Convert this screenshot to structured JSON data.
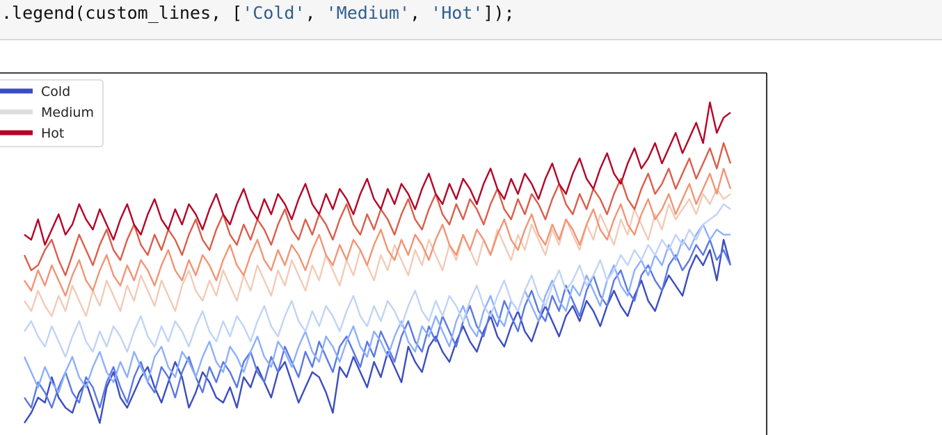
{
  "code_cell": {
    "prefix": ".legend(custom_lines, [",
    "str1": "'Cold'",
    "sep1": ", ",
    "str2": "'Medium'",
    "sep2": ", ",
    "str3": "'Hot'",
    "suffix": "]);"
  },
  "chart_data": {
    "type": "line",
    "title": "",
    "xlabel": "",
    "ylabel": "",
    "grid": false,
    "legend": {
      "placement": "upper-left",
      "entries": [
        {
          "label": "Cold",
          "color": "#3b4cc0"
        },
        {
          "label": "Medium",
          "color": "#dddddd"
        },
        {
          "label": "Hot",
          "color": "#b40426"
        }
      ]
    },
    "colormap": "coolwarm",
    "series": [
      {
        "color": "#3b4cc0",
        "values": [
          -0.1,
          0.1,
          0.4,
          0.3,
          0.8,
          0.4,
          0.2,
          0.1,
          0.5,
          0.7,
          0.3,
          -0.1,
          0.6,
          0.9,
          0.4,
          0.2,
          0.5,
          0.8,
          1.0,
          0.6,
          0.3,
          0.7,
          1.1,
          0.8,
          0.2,
          0.5,
          0.9,
          0.7,
          0.4,
          0.3,
          0.6,
          0.2,
          0.8,
          0.6,
          1.0,
          0.7,
          0.4,
          0.9,
          1.1,
          0.7,
          0.3,
          0.6,
          0.9,
          0.8,
          0.5,
          0.1,
          1.0,
          0.8,
          1.2,
          0.9,
          0.6,
          1.1,
          0.8,
          1.3,
          1.0,
          0.7,
          1.4,
          1.1,
          0.9,
          1.4,
          1.6,
          1.3,
          1.1,
          1.5,
          1.8,
          1.5,
          1.3,
          1.7,
          2.0,
          1.6,
          1.4,
          1.8,
          2.1,
          1.7,
          1.5,
          1.9,
          2.2,
          1.9,
          1.6,
          2.0,
          2.2,
          1.9,
          2.3,
          2.1,
          1.8,
          2.2,
          2.5,
          2.2,
          2.0,
          2.4,
          2.7,
          2.3,
          2.1,
          2.5,
          2.8,
          2.6,
          2.4,
          2.9,
          3.2,
          3.0,
          3.3,
          2.7,
          3.5,
          3.0
        ]
      },
      {
        "color": "#5a78e4",
        "values": [
          0.4,
          0.2,
          0.7,
          0.5,
          0.2,
          0.6,
          0.9,
          0.5,
          0.3,
          0.8,
          0.6,
          0.2,
          0.7,
          1.0,
          0.6,
          0.3,
          0.8,
          1.1,
          0.7,
          0.5,
          1.0,
          0.8,
          0.4,
          0.9,
          1.2,
          0.8,
          0.5,
          1.0,
          0.7,
          1.1,
          0.9,
          0.6,
          1.1,
          1.3,
          0.9,
          0.7,
          1.2,
          0.9,
          1.4,
          1.1,
          0.8,
          1.3,
          1.0,
          1.5,
          1.2,
          0.9,
          1.4,
          1.6,
          1.3,
          1.0,
          1.5,
          1.2,
          1.7,
          1.4,
          1.1,
          1.6,
          1.9,
          1.5,
          1.3,
          1.8,
          1.5,
          2.0,
          1.7,
          1.4,
          1.9,
          2.2,
          1.8,
          1.6,
          2.1,
          1.8,
          2.3,
          2.0,
          1.7,
          2.2,
          2.5,
          2.1,
          1.9,
          2.4,
          2.1,
          2.6,
          2.3,
          2.0,
          2.5,
          2.8,
          2.4,
          2.2,
          2.7,
          2.9,
          2.5,
          2.3,
          2.8,
          3.0,
          2.7,
          2.5,
          3.0,
          3.2,
          2.9,
          3.1,
          3.4,
          3.2,
          3.5,
          3.1,
          3.3,
          3.0
        ]
      },
      {
        "color": "#8caffe",
        "values": [
          1.2,
          0.9,
          0.6,
          1.0,
          0.7,
          0.5,
          0.9,
          1.2,
          0.8,
          0.6,
          1.0,
          1.3,
          0.9,
          0.7,
          1.1,
          0.8,
          1.3,
          1.0,
          0.7,
          1.2,
          1.4,
          1.0,
          0.8,
          1.3,
          1.1,
          0.8,
          1.2,
          1.5,
          1.1,
          0.9,
          1.4,
          1.2,
          0.9,
          1.3,
          1.6,
          1.2,
          1.0,
          1.5,
          1.3,
          1.0,
          1.4,
          1.7,
          1.3,
          1.1,
          1.6,
          1.4,
          1.1,
          1.5,
          1.8,
          1.4,
          1.2,
          1.7,
          1.5,
          1.2,
          1.6,
          1.9,
          1.5,
          1.3,
          1.8,
          1.6,
          2.0,
          1.7,
          1.4,
          1.9,
          2.2,
          1.8,
          1.6,
          2.1,
          2.4,
          2.0,
          1.8,
          2.3,
          2.1,
          2.5,
          2.2,
          1.9,
          2.4,
          2.7,
          2.3,
          2.1,
          2.6,
          2.4,
          2.8,
          2.5,
          2.2,
          2.7,
          3.0,
          2.6,
          2.4,
          2.9,
          3.1,
          2.8,
          3.2,
          3.0,
          3.4,
          3.1,
          3.5,
          3.3,
          3.6,
          3.8,
          3.5,
          3.7,
          3.6,
          3.6
        ]
      },
      {
        "color": "#c0d4f5",
        "values": [
          1.7,
          1.9,
          1.6,
          1.4,
          1.8,
          1.5,
          1.2,
          1.6,
          1.9,
          1.5,
          1.3,
          1.7,
          1.4,
          1.8,
          1.6,
          1.3,
          1.7,
          2.0,
          1.6,
          1.4,
          1.8,
          1.5,
          1.9,
          1.7,
          1.4,
          1.8,
          2.1,
          1.7,
          1.5,
          1.9,
          1.6,
          2.0,
          1.8,
          1.5,
          1.9,
          2.2,
          1.8,
          1.6,
          2.0,
          2.3,
          1.9,
          1.7,
          2.1,
          1.8,
          2.2,
          2.0,
          1.7,
          2.1,
          2.4,
          2.0,
          1.8,
          2.2,
          1.9,
          2.3,
          2.1,
          1.8,
          2.2,
          2.5,
          2.1,
          1.9,
          2.3,
          2.0,
          2.4,
          2.2,
          1.9,
          2.3,
          2.6,
          2.2,
          2.0,
          2.4,
          2.7,
          2.3,
          2.1,
          2.5,
          2.8,
          2.4,
          2.2,
          2.6,
          2.9,
          2.5,
          2.7,
          3.0,
          2.6,
          2.8,
          3.1,
          2.7,
          2.9,
          3.2,
          3.0,
          3.3,
          3.1,
          3.4,
          3.2,
          3.5,
          3.3,
          3.6,
          3.4,
          3.7,
          3.5,
          3.8,
          3.9,
          4.0,
          4.2,
          4.1
        ]
      },
      {
        "color": "#f2cbb7",
        "values": [
          2.3,
          2.1,
          2.5,
          2.2,
          2.0,
          2.4,
          2.1,
          2.6,
          2.3,
          2.0,
          2.5,
          2.2,
          2.7,
          2.4,
          2.1,
          2.6,
          2.3,
          2.8,
          2.5,
          2.2,
          2.7,
          2.4,
          2.1,
          2.6,
          2.9,
          2.5,
          2.3,
          2.7,
          2.4,
          2.9,
          2.6,
          2.3,
          2.8,
          2.5,
          3.0,
          2.7,
          2.4,
          2.9,
          2.6,
          3.1,
          2.8,
          2.5,
          3.0,
          2.7,
          3.2,
          2.9,
          2.6,
          3.1,
          2.8,
          3.3,
          3.0,
          2.7,
          3.2,
          2.9,
          3.4,
          3.1,
          2.8,
          3.3,
          3.0,
          3.5,
          3.2,
          2.9,
          3.4,
          3.1,
          3.6,
          3.3,
          3.0,
          3.5,
          3.2,
          3.7,
          3.4,
          3.1,
          3.6,
          3.3,
          3.8,
          3.5,
          3.2,
          3.7,
          3.4,
          3.9,
          3.6,
          3.3,
          3.8,
          3.5,
          4.0,
          3.7,
          3.4,
          3.9,
          3.6,
          4.1,
          3.8,
          3.5,
          4.0,
          3.7,
          4.2,
          3.9,
          4.1,
          4.3,
          4.0,
          4.4,
          4.2,
          4.5,
          4.3,
          4.4
        ]
      },
      {
        "color": "#f39474",
        "values": [
          2.7,
          2.5,
          2.9,
          2.6,
          3.0,
          2.7,
          2.4,
          2.8,
          3.1,
          2.7,
          2.5,
          2.9,
          3.2,
          2.8,
          2.6,
          3.0,
          2.7,
          3.1,
          2.9,
          2.6,
          3.0,
          3.3,
          2.9,
          2.7,
          3.1,
          2.8,
          3.2,
          3.0,
          2.7,
          3.1,
          3.4,
          3.0,
          2.8,
          3.2,
          3.5,
          3.1,
          2.9,
          3.3,
          3.0,
          3.4,
          3.2,
          2.9,
          3.3,
          3.6,
          3.2,
          3.0,
          3.4,
          3.1,
          3.5,
          3.3,
          3.0,
          3.4,
          3.7,
          3.3,
          3.1,
          3.5,
          3.2,
          3.6,
          3.4,
          3.1,
          3.5,
          3.8,
          3.4,
          3.2,
          3.6,
          3.3,
          3.7,
          3.5,
          3.2,
          3.6,
          3.9,
          3.5,
          3.3,
          3.7,
          4.0,
          3.6,
          3.4,
          3.8,
          3.5,
          3.9,
          3.7,
          3.4,
          3.8,
          4.1,
          3.7,
          3.5,
          3.9,
          4.2,
          3.8,
          3.6,
          4.0,
          4.3,
          3.9,
          4.1,
          4.4,
          4.0,
          4.3,
          4.6,
          4.2,
          4.5,
          4.8,
          4.4,
          4.9,
          4.5
        ]
      },
      {
        "color": "#dc5d4a",
        "values": [
          3.2,
          2.9,
          3.0,
          3.3,
          3.5,
          3.1,
          2.8,
          3.2,
          3.6,
          3.3,
          3.0,
          3.4,
          3.7,
          3.3,
          3.1,
          3.5,
          3.8,
          3.4,
          3.2,
          3.6,
          3.3,
          3.7,
          3.5,
          3.2,
          3.6,
          3.9,
          3.5,
          3.3,
          3.7,
          4.0,
          3.6,
          3.4,
          3.8,
          3.5,
          3.9,
          3.7,
          3.4,
          3.8,
          4.1,
          3.7,
          3.5,
          3.9,
          3.6,
          4.0,
          3.8,
          3.5,
          3.9,
          4.2,
          3.8,
          3.6,
          4.0,
          3.7,
          4.1,
          3.9,
          3.6,
          4.0,
          4.3,
          3.9,
          3.7,
          4.1,
          4.4,
          4.0,
          3.8,
          4.2,
          3.9,
          4.3,
          4.1,
          3.8,
          4.2,
          4.5,
          4.1,
          3.9,
          4.3,
          4.0,
          4.4,
          4.2,
          3.9,
          4.3,
          4.6,
          4.2,
          4.0,
          4.4,
          4.1,
          4.5,
          4.3,
          4.0,
          4.4,
          4.7,
          4.3,
          4.1,
          4.5,
          4.8,
          4.4,
          4.6,
          4.9,
          4.5,
          4.8,
          5.1,
          4.7,
          5.0,
          5.3,
          4.9,
          5.4,
          5.0
        ]
      },
      {
        "color": "#b40426",
        "values": [
          3.6,
          3.5,
          3.9,
          3.4,
          3.7,
          4.0,
          3.6,
          3.8,
          4.2,
          3.9,
          3.7,
          4.1,
          3.8,
          3.5,
          3.9,
          4.2,
          3.8,
          3.6,
          4.0,
          4.3,
          3.9,
          3.7,
          4.1,
          3.8,
          4.2,
          4.0,
          3.7,
          4.1,
          4.4,
          4.0,
          3.8,
          4.2,
          4.5,
          4.1,
          3.9,
          4.3,
          4.0,
          4.4,
          4.2,
          3.9,
          4.3,
          4.6,
          4.2,
          4.0,
          4.4,
          4.1,
          4.5,
          4.3,
          4.0,
          4.4,
          4.7,
          4.3,
          4.1,
          4.5,
          4.2,
          4.6,
          4.4,
          4.1,
          4.5,
          4.8,
          4.4,
          4.2,
          4.6,
          4.3,
          4.7,
          4.5,
          4.2,
          4.6,
          4.9,
          4.5,
          4.3,
          4.7,
          4.4,
          4.8,
          4.6,
          4.3,
          4.7,
          5.0,
          4.6,
          4.4,
          4.8,
          5.1,
          4.7,
          4.5,
          4.9,
          5.2,
          4.8,
          4.6,
          5.0,
          5.3,
          4.9,
          5.1,
          5.4,
          5.0,
          5.3,
          5.6,
          5.2,
          5.5,
          5.8,
          5.4,
          6.2,
          5.6,
          5.9,
          6.0
        ]
      }
    ],
    "ylim": [
      -0.5,
      6.6
    ]
  }
}
